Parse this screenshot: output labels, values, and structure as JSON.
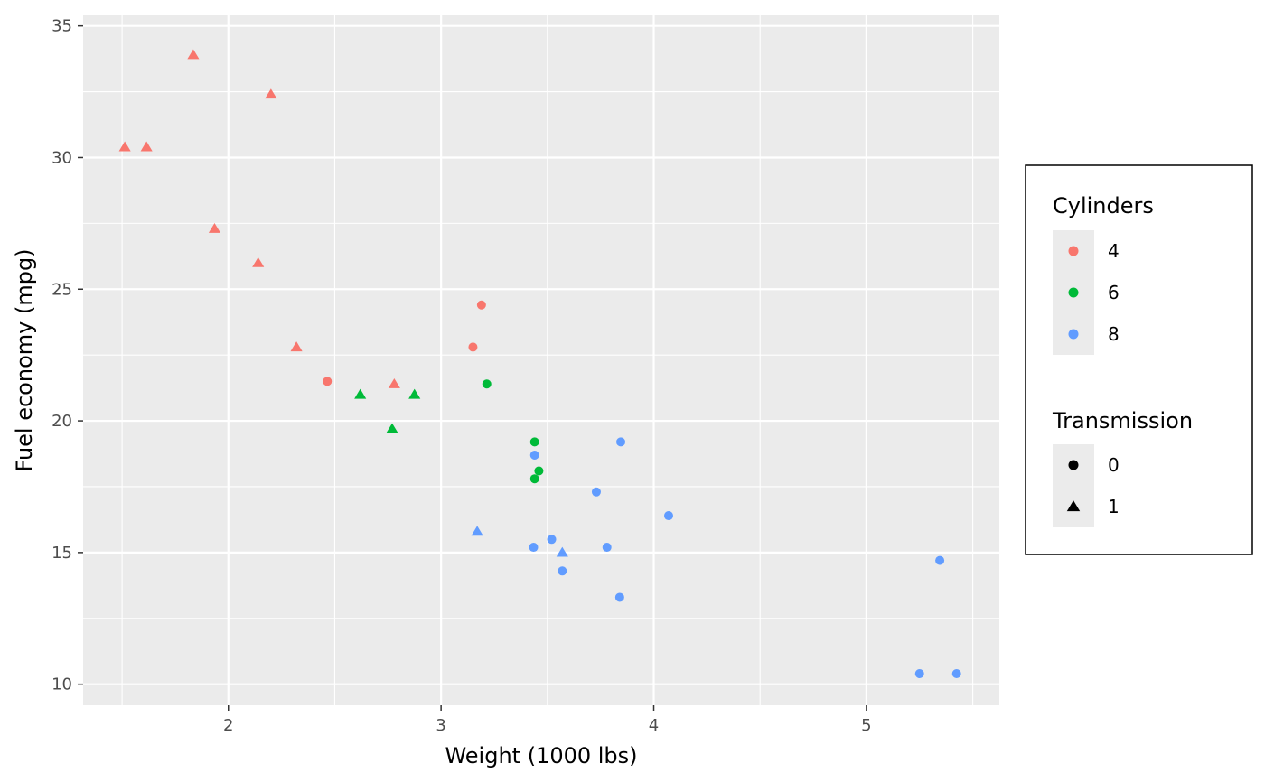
{
  "chart_data": {
    "type": "scatter",
    "title": "",
    "xlabel": "Weight (1000 lbs)",
    "ylabel": "Fuel economy (mpg)",
    "xlim": [
      1.317,
      5.625
    ],
    "ylim": [
      9.2,
      35.4
    ],
    "x_ticks": [
      2,
      3,
      4,
      5
    ],
    "y_ticks": [
      10,
      15,
      20,
      25,
      30,
      35
    ],
    "grid": true,
    "panel_background": "#ebebeb",
    "legend_position": "right",
    "color_legend": {
      "title": "Cylinders",
      "entries": [
        {
          "label": "4",
          "color": "#f8766d"
        },
        {
          "label": "6",
          "color": "#00ba38"
        },
        {
          "label": "8",
          "color": "#619cff"
        }
      ]
    },
    "shape_legend": {
      "title": "Transmission",
      "entries": [
        {
          "label": "0",
          "shape": "circle"
        },
        {
          "label": "1",
          "shape": "triangle"
        }
      ]
    },
    "points": [
      {
        "x": 2.62,
        "y": 21.0,
        "cyl": "6",
        "am": "1"
      },
      {
        "x": 2.875,
        "y": 21.0,
        "cyl": "6",
        "am": "1"
      },
      {
        "x": 2.32,
        "y": 22.8,
        "cyl": "4",
        "am": "1"
      },
      {
        "x": 3.215,
        "y": 21.4,
        "cyl": "6",
        "am": "0"
      },
      {
        "x": 3.44,
        "y": 18.7,
        "cyl": "8",
        "am": "0"
      },
      {
        "x": 3.46,
        "y": 18.1,
        "cyl": "6",
        "am": "0"
      },
      {
        "x": 3.57,
        "y": 14.3,
        "cyl": "8",
        "am": "0"
      },
      {
        "x": 3.19,
        "y": 24.4,
        "cyl": "4",
        "am": "0"
      },
      {
        "x": 3.15,
        "y": 22.8,
        "cyl": "4",
        "am": "0"
      },
      {
        "x": 3.44,
        "y": 19.2,
        "cyl": "6",
        "am": "0"
      },
      {
        "x": 3.44,
        "y": 17.8,
        "cyl": "6",
        "am": "0"
      },
      {
        "x": 4.07,
        "y": 16.4,
        "cyl": "8",
        "am": "0"
      },
      {
        "x": 3.73,
        "y": 17.3,
        "cyl": "8",
        "am": "0"
      },
      {
        "x": 3.78,
        "y": 15.2,
        "cyl": "8",
        "am": "0"
      },
      {
        "x": 5.25,
        "y": 10.4,
        "cyl": "8",
        "am": "0"
      },
      {
        "x": 5.424,
        "y": 10.4,
        "cyl": "8",
        "am": "0"
      },
      {
        "x": 5.345,
        "y": 14.7,
        "cyl": "8",
        "am": "0"
      },
      {
        "x": 2.2,
        "y": 32.4,
        "cyl": "4",
        "am": "1"
      },
      {
        "x": 1.615,
        "y": 30.4,
        "cyl": "4",
        "am": "1"
      },
      {
        "x": 1.835,
        "y": 33.9,
        "cyl": "4",
        "am": "1"
      },
      {
        "x": 2.465,
        "y": 21.5,
        "cyl": "4",
        "am": "0"
      },
      {
        "x": 3.52,
        "y": 15.5,
        "cyl": "8",
        "am": "0"
      },
      {
        "x": 3.435,
        "y": 15.2,
        "cyl": "8",
        "am": "0"
      },
      {
        "x": 3.84,
        "y": 13.3,
        "cyl": "8",
        "am": "0"
      },
      {
        "x": 3.845,
        "y": 19.2,
        "cyl": "8",
        "am": "0"
      },
      {
        "x": 1.935,
        "y": 27.3,
        "cyl": "4",
        "am": "1"
      },
      {
        "x": 2.14,
        "y": 26.0,
        "cyl": "4",
        "am": "1"
      },
      {
        "x": 1.513,
        "y": 30.4,
        "cyl": "4",
        "am": "1"
      },
      {
        "x": 3.17,
        "y": 15.8,
        "cyl": "8",
        "am": "1"
      },
      {
        "x": 2.77,
        "y": 19.7,
        "cyl": "6",
        "am": "1"
      },
      {
        "x": 3.57,
        "y": 15.0,
        "cyl": "8",
        "am": "1"
      },
      {
        "x": 2.78,
        "y": 21.4,
        "cyl": "4",
        "am": "1"
      }
    ]
  }
}
